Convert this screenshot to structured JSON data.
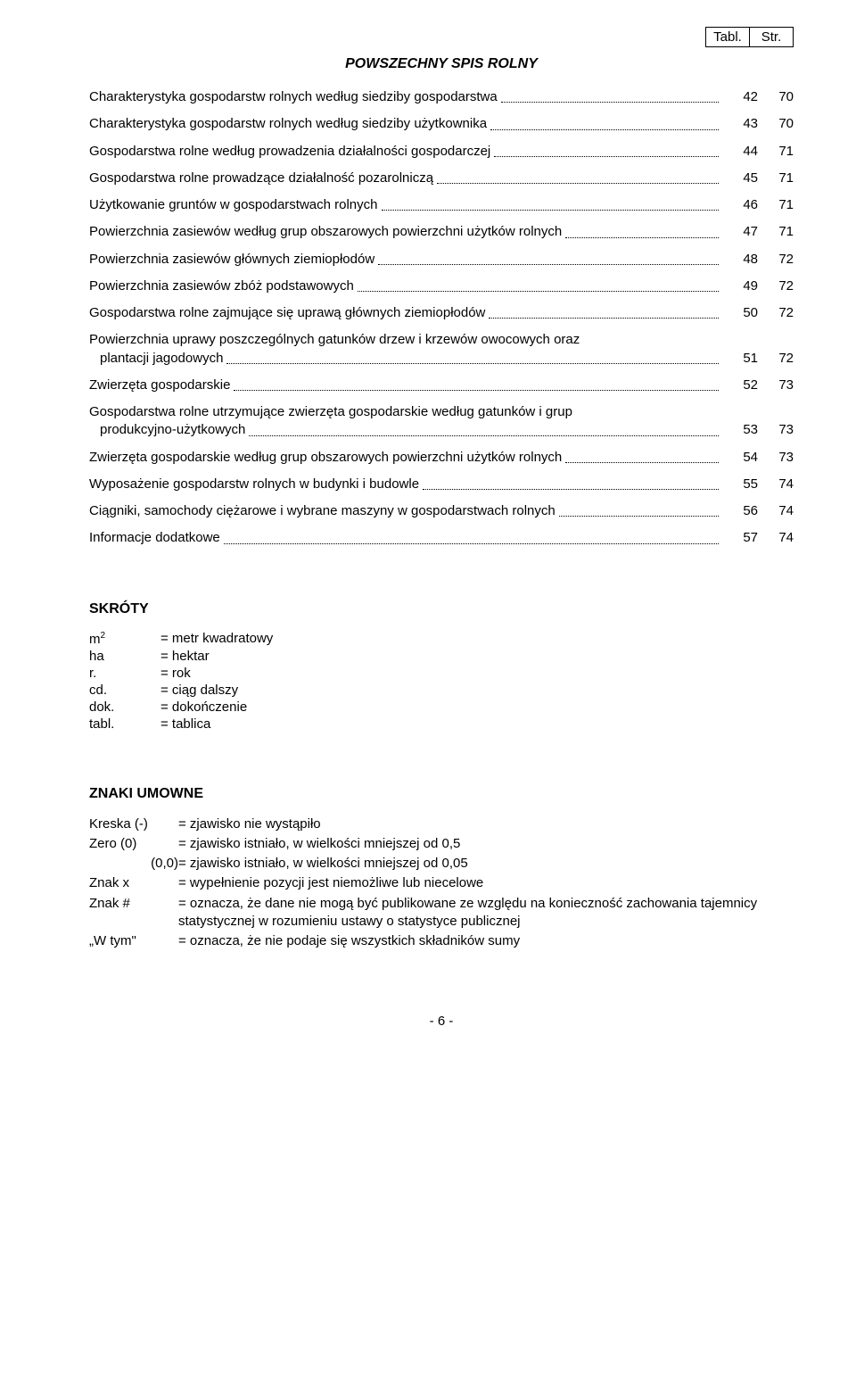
{
  "header": {
    "col1": "Tabl.",
    "col2": "Str."
  },
  "section_title": "POWSZECHNY SPIS ROLNY",
  "toc": [
    {
      "label": "Charakterystyka gospodarstw rolnych według siedziby gospodarstwa",
      "tabl": "42",
      "str": "70",
      "multiline": false
    },
    {
      "label": "Charakterystyka gospodarstw rolnych według siedziby użytkownika",
      "tabl": "43",
      "str": "70",
      "multiline": false
    },
    {
      "label": "Gospodarstwa rolne według prowadzenia działalności gospodarczej",
      "tabl": "44",
      "str": "71",
      "multiline": false
    },
    {
      "label": "Gospodarstwa rolne prowadzące działalność pozarolniczą",
      "tabl": "45",
      "str": "71",
      "multiline": false
    },
    {
      "label": "Użytkowanie gruntów w gospodarstwach rolnych",
      "tabl": "46",
      "str": "71",
      "multiline": false
    },
    {
      "label": "Powierzchnia zasiewów według grup obszarowych powierzchni użytków rolnych",
      "tabl": "47",
      "str": "71",
      "multiline": false
    },
    {
      "label": "Powierzchnia zasiewów głównych ziemiopłodów",
      "tabl": "48",
      "str": "72",
      "multiline": false
    },
    {
      "label": "Powierzchnia zasiewów zbóż podstawowych",
      "tabl": "49",
      "str": "72",
      "multiline": false
    },
    {
      "label": "Gospodarstwa rolne zajmujące się uprawą głównych ziemiopłodów",
      "tabl": "50",
      "str": "72",
      "multiline": false
    },
    {
      "label_line1": "Powierzchnia uprawy poszczególnych gatunków drzew i krzewów owocowych oraz",
      "label_line2": "plantacji jagodowych",
      "tabl": "51",
      "str": "72",
      "multiline": true
    },
    {
      "label": "Zwierzęta gospodarskie",
      "tabl": "52",
      "str": "73",
      "multiline": false
    },
    {
      "label_line1": "Gospodarstwa rolne utrzymujące zwierzęta gospodarskie według gatunków i grup",
      "label_line2": "produkcyjno-użytkowych",
      "tabl": "53",
      "str": "73",
      "multiline": true
    },
    {
      "label": "Zwierzęta gospodarskie według grup obszarowych powierzchni użytków rolnych",
      "tabl": "54",
      "str": "73",
      "multiline": false
    },
    {
      "label": "Wyposażenie gospodarstw rolnych w budynki i budowle",
      "tabl": "55",
      "str": "74",
      "multiline": false
    },
    {
      "label": "Ciągniki, samochody ciężarowe i wybrane maszyny w gospodarstwach rolnych",
      "tabl": "56",
      "str": "74",
      "multiline": false
    },
    {
      "label": "Informacje dodatkowe",
      "tabl": "57",
      "str": "74",
      "multiline": false
    }
  ],
  "skroty": {
    "title": "SKRÓTY",
    "rows": [
      {
        "sym_html": "m<sup>2</sup>",
        "def": "= metr kwadratowy"
      },
      {
        "sym_html": "ha",
        "def": "= hektar"
      },
      {
        "sym_html": "r.",
        "def": "= rok"
      },
      {
        "sym_html": "cd.",
        "def": "= ciąg dalszy"
      },
      {
        "sym_html": "dok.",
        "def": "= dokończenie"
      },
      {
        "sym_html": "tabl.",
        "def": "= tablica"
      }
    ]
  },
  "znaki": {
    "title": "ZNAKI UMOWNE",
    "rows": [
      {
        "sym": "Kreska (-)",
        "def": "= zjawisko nie wystąpiło"
      },
      {
        "sym": "Zero (0)",
        "def": "= zjawisko istniało, w wielkości mniejszej od 0,5"
      },
      {
        "sym": "(0,0)",
        "def": "= zjawisko istniało, w wielkości mniejszej od 0,05",
        "align_right": true
      },
      {
        "sym": "Znak x",
        "def": "= wypełnienie pozycji jest niemożliwe lub niecelowe"
      },
      {
        "sym": "Znak #",
        "def": "= oznacza, że dane nie mogą być publikowane ze względu na konieczność zachowania tajemnicy statystycznej w rozumieniu ustawy o statystyce publicznej"
      },
      {
        "sym": "„W tym\"",
        "def": "= oznacza, że nie podaje się wszystkich składników sumy"
      }
    ]
  },
  "footer": "- 6 -"
}
